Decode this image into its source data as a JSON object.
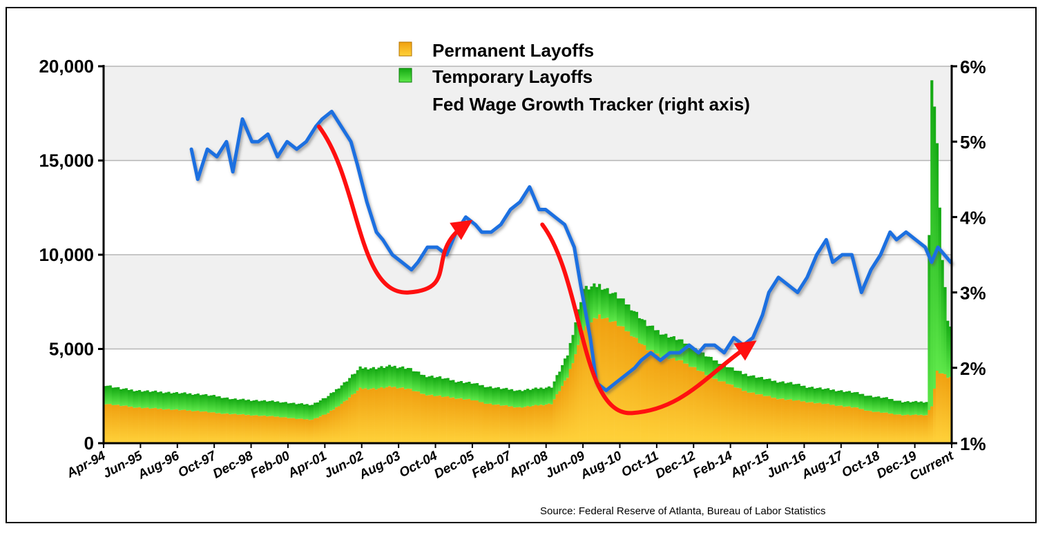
{
  "chart_data": {
    "type": "bar",
    "subtype": "stacked bar with line overlay (secondary axis)",
    "legend": {
      "placement": "top-center",
      "entries": [
        {
          "label": "Permanent Layoffs",
          "color": "#f2a51a",
          "kind": "bar"
        },
        {
          "label": "Temporary Layoffs",
          "color": "#22c81e",
          "kind": "bar"
        },
        {
          "label": "Fed Wage Growth Tracker (right axis)",
          "color": "#1e6fe0",
          "kind": "line"
        }
      ]
    },
    "source": "Source: Federal Reserve of Atlanta, Bureau of Labor Statistics",
    "x_tick_labels": [
      "Apr-94",
      "Jun-95",
      "Aug-96",
      "Oct-97",
      "Dec-98",
      "Feb-00",
      "Apr-01",
      "Jun-02",
      "Aug-03",
      "Oct-04",
      "Dec-05",
      "Feb-07",
      "Apr-08",
      "Jun-09",
      "Aug-10",
      "Oct-11",
      "Dec-12",
      "Feb-14",
      "Apr-15",
      "Jun-16",
      "Aug-17",
      "Oct-18",
      "Dec-19",
      "Current"
    ],
    "left_axis": {
      "ylim": [
        0,
        20000
      ],
      "ticks": [
        0,
        5000,
        10000,
        15000,
        20000
      ],
      "tick_labels": [
        "0",
        "5,000",
        "10,000",
        "15,000",
        "20,000"
      ]
    },
    "right_axis": {
      "ylim": [
        1,
        6
      ],
      "ticks": [
        1,
        2,
        3,
        4,
        5,
        6
      ],
      "tick_labels": [
        "1%",
        "2%",
        "3%",
        "4%",
        "5%",
        "6%"
      ]
    },
    "grid": "horizontal, alternating shaded bands",
    "x_years": [
      1994.25,
      1994.75,
      1995.25,
      1995.75,
      1996.25,
      1996.75,
      1997.25,
      1997.75,
      1998.25,
      1998.75,
      1999.25,
      1999.75,
      2000.25,
      2000.75,
      2001.25,
      2001.75,
      2002.25,
      2002.75,
      2003.25,
      2003.75,
      2004.25,
      2004.75,
      2005.25,
      2005.75,
      2006.25,
      2006.75,
      2007.25,
      2007.75,
      2008.25,
      2008.75,
      2009.25,
      2009.75,
      2010.25,
      2010.75,
      2011.25,
      2011.75,
      2012.25,
      2012.75,
      2013.25,
      2013.75,
      2014.25,
      2014.75,
      2015.25,
      2015.75,
      2016.25,
      2016.75,
      2017.25,
      2017.75,
      2018.25,
      2018.75,
      2019.25,
      2019.75,
      2020.0,
      2020.17,
      2020.33,
      2020.5,
      2020.67,
      2020.83
    ],
    "series": [
      {
        "name": "Permanent Layoffs",
        "values": [
          2100,
          2000,
          1900,
          1850,
          1800,
          1750,
          1700,
          1600,
          1550,
          1500,
          1450,
          1400,
          1300,
          1250,
          1600,
          2200,
          2900,
          2900,
          3000,
          2900,
          2600,
          2500,
          2400,
          2300,
          2100,
          2000,
          1900,
          2000,
          2100,
          3500,
          6000,
          6800,
          6400,
          5800,
          5000,
          4600,
          4400,
          4000,
          3500,
          3200,
          2800,
          2600,
          2400,
          2300,
          2200,
          2100,
          2000,
          1900,
          1700,
          1600,
          1500,
          1500,
          1500,
          2000,
          3800,
          3700,
          3500,
          3500
        ]
      },
      {
        "name": "Temporary Layoffs",
        "values": [
          1000,
          900,
          900,
          900,
          900,
          900,
          900,
          900,
          800,
          800,
          800,
          800,
          800,
          800,
          900,
          1000,
          1100,
          1100,
          1100,
          1100,
          1000,
          1000,
          900,
          900,
          900,
          900,
          900,
          900,
          900,
          1200,
          2200,
          1600,
          1500,
          1400,
          1300,
          1200,
          1100,
          1000,
          1000,
          900,
          900,
          900,
          900,
          900,
          800,
          800,
          800,
          800,
          800,
          800,
          700,
          700,
          700,
          18000,
          12000,
          6000,
          3000,
          2300
        ]
      },
      {
        "name": "Fed Wage Growth Tracker (right axis)",
        "axis": "right",
        "x_years": [
          1997.0,
          1997.2,
          1997.5,
          1997.8,
          1998.1,
          1998.3,
          1998.6,
          1998.9,
          1999.1,
          1999.4,
          1999.7,
          2000.0,
          2000.3,
          2000.6,
          2000.9,
          2001.1,
          2001.4,
          2001.7,
          2002.0,
          2002.2,
          2002.5,
          2002.8,
          2003.0,
          2003.3,
          2003.6,
          2003.9,
          2004.1,
          2004.4,
          2004.7,
          2005.0,
          2005.3,
          2005.6,
          2005.9,
          2006.1,
          2006.4,
          2006.7,
          2007.0,
          2007.3,
          2007.6,
          2007.9,
          2008.1,
          2008.4,
          2008.7,
          2009.0,
          2009.2,
          2009.5,
          2009.7,
          2010.0,
          2010.3,
          2010.6,
          2010.9,
          2011.1,
          2011.4,
          2011.7,
          2012.0,
          2012.3,
          2012.6,
          2012.9,
          2013.1,
          2013.4,
          2013.7,
          2014.0,
          2014.3,
          2014.6,
          2014.9,
          2015.1,
          2015.4,
          2015.7,
          2016.0,
          2016.3,
          2016.6,
          2016.9,
          2017.1,
          2017.4,
          2017.7,
          2018.0,
          2018.3,
          2018.6,
          2018.9,
          2019.1,
          2019.4,
          2019.7,
          2020.0,
          2020.2,
          2020.4,
          2020.6,
          2020.8
        ],
        "values": [
          4.9,
          4.5,
          4.9,
          4.8,
          5.0,
          4.6,
          5.3,
          5.0,
          5.0,
          5.1,
          4.8,
          5.0,
          4.9,
          5.0,
          5.2,
          5.3,
          5.4,
          5.2,
          5.0,
          4.7,
          4.2,
          3.8,
          3.7,
          3.5,
          3.4,
          3.3,
          3.4,
          3.6,
          3.6,
          3.5,
          3.8,
          4.0,
          3.9,
          3.8,
          3.8,
          3.9,
          4.1,
          4.2,
          4.4,
          4.1,
          4.1,
          4.0,
          3.9,
          3.6,
          3.1,
          2.4,
          1.8,
          1.7,
          1.8,
          1.9,
          2.0,
          2.1,
          2.2,
          2.1,
          2.2,
          2.2,
          2.3,
          2.2,
          2.3,
          2.3,
          2.2,
          2.4,
          2.3,
          2.4,
          2.7,
          3.0,
          3.2,
          3.1,
          3.0,
          3.2,
          3.5,
          3.7,
          3.4,
          3.5,
          3.5,
          3.0,
          3.3,
          3.5,
          3.8,
          3.7,
          3.8,
          3.7,
          3.6,
          3.4,
          3.6,
          3.5,
          3.4
        ]
      }
    ],
    "annotations": [
      {
        "type": "arrow",
        "color": "#ff0000",
        "from": [
          2001.0,
          5.2
        ],
        "to": [
          2005.6,
          3.9
        ]
      },
      {
        "type": "arrow",
        "color": "#ff0000",
        "from": [
          2008.0,
          3.9
        ],
        "to": [
          2014.5,
          2.3
        ]
      }
    ]
  }
}
